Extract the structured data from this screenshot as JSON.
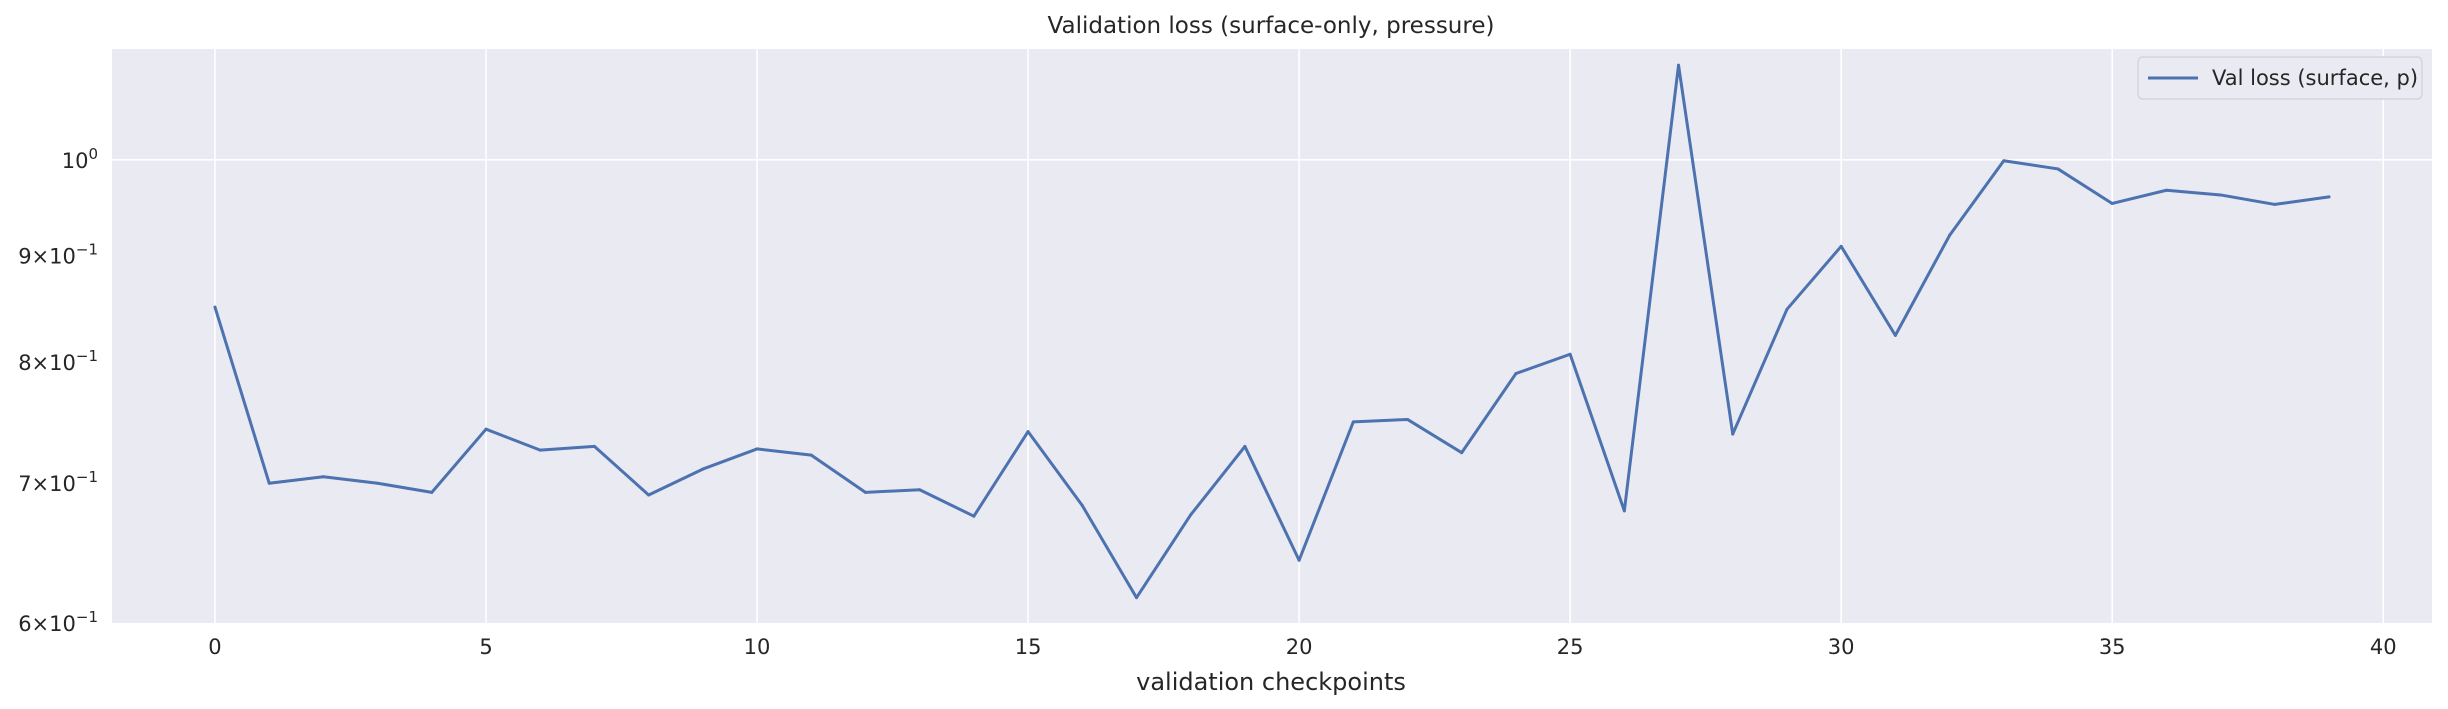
{
  "chart_data": {
    "type": "line",
    "title": "Validation loss (surface-only, pressure)",
    "xlabel": "validation checkpoints",
    "ylabel": "",
    "yscale": "log",
    "xlim": [
      -1.9,
      40.9
    ],
    "ylim": [
      0.6,
      1.13
    ],
    "grid": true,
    "background": "#EAEAF2",
    "grid_color": "#FFFFFF",
    "legend": {
      "placement": "top-right"
    },
    "x_ticks": [
      {
        "value": 0,
        "label": "0"
      },
      {
        "value": 5,
        "label": "5"
      },
      {
        "value": 10,
        "label": "10"
      },
      {
        "value": 15,
        "label": "15"
      },
      {
        "value": 20,
        "label": "20"
      },
      {
        "value": 25,
        "label": "25"
      },
      {
        "value": 30,
        "label": "30"
      },
      {
        "value": 35,
        "label": "35"
      },
      {
        "value": 40,
        "label": "40"
      }
    ],
    "y_ticks": [
      {
        "value": 0.6,
        "mantissa": "6",
        "exp": "−1",
        "label": "6 × 10^−1"
      },
      {
        "value": 0.7,
        "mantissa": "7",
        "exp": "−1",
        "label": "7 × 10^−1"
      },
      {
        "value": 0.8,
        "mantissa": "8",
        "exp": "−1",
        "label": "8 × 10^−1"
      },
      {
        "value": 0.9,
        "mantissa": "9",
        "exp": "−1",
        "label": "9 × 10^−1"
      },
      {
        "value": 1.0,
        "mantissa": "",
        "exp": "0",
        "label": "10^0"
      }
    ],
    "series": [
      {
        "name": "Val loss (surface, p)",
        "color": "#4C72B0",
        "x": [
          0,
          1,
          2,
          3,
          4,
          5,
          6,
          7,
          8,
          9,
          10,
          11,
          12,
          13,
          14,
          15,
          16,
          17,
          18,
          19,
          20,
          21,
          22,
          23,
          24,
          25,
          26,
          27,
          28,
          29,
          30,
          31,
          32,
          33,
          34,
          35,
          36,
          37,
          38,
          39
        ],
        "y": [
          0.85,
          0.7,
          0.705,
          0.7,
          0.693,
          0.743,
          0.726,
          0.729,
          0.691,
          0.711,
          0.727,
          0.722,
          0.693,
          0.695,
          0.675,
          0.741,
          0.683,
          0.617,
          0.676,
          0.729,
          0.643,
          0.749,
          0.751,
          0.724,
          0.79,
          0.807,
          0.679,
          1.11,
          0.739,
          0.848,
          0.909,
          0.824,
          0.92,
          0.999,
          0.99,
          0.953,
          0.967,
          0.962,
          0.952,
          0.96
        ]
      }
    ]
  }
}
